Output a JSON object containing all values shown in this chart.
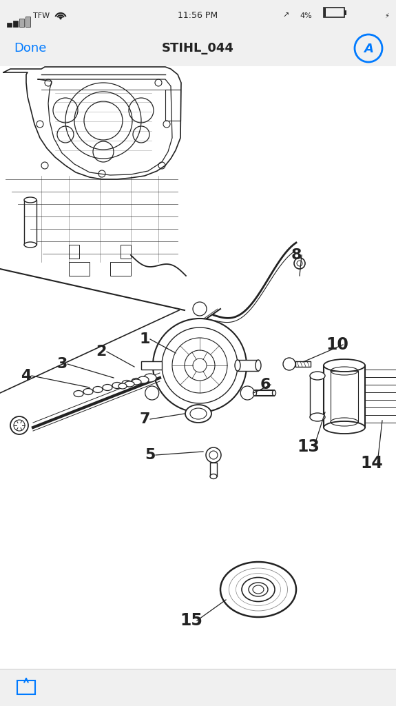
{
  "bg_color": "#f0f0f0",
  "diagram_bg": "#ffffff",
  "title": "STIHL_044",
  "line_color": "#222222",
  "accent_color": "#007AFF",
  "nav_done": "Done",
  "nav_title": "STIHL_044",
  "status_time": "11:56 PM",
  "status_carrier": "TFW",
  "status_battery": "4%"
}
